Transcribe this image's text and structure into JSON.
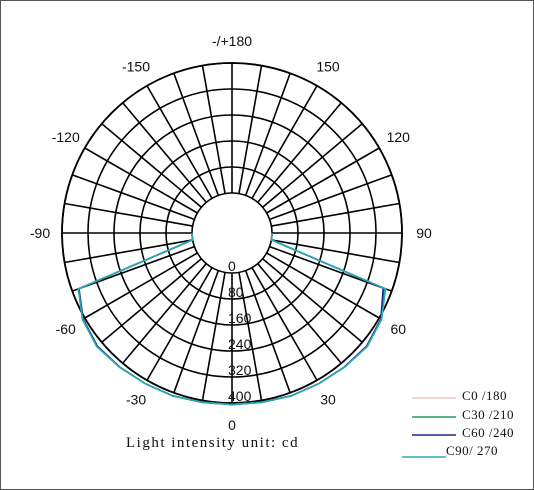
{
  "chart_data": {
    "type": "polar",
    "title": "",
    "unit_label": "Light intensity unit: cd",
    "angle_ticks": [
      {
        "angle": 180,
        "label": "-/+180"
      },
      {
        "angle": 150,
        "label": "150"
      },
      {
        "angle": 120,
        "label": "120"
      },
      {
        "angle": 90,
        "label": "90"
      },
      {
        "angle": 60,
        "label": "60"
      },
      {
        "angle": 30,
        "label": "30"
      },
      {
        "angle": 0,
        "label": "0"
      },
      {
        "angle": -30,
        "label": "-30"
      },
      {
        "angle": -60,
        "label": "-60"
      },
      {
        "angle": -90,
        "label": "-90"
      },
      {
        "angle": -120,
        "label": "-120"
      },
      {
        "angle": -150,
        "label": "-150"
      }
    ],
    "radial_ticks": [
      0,
      80,
      160,
      240,
      320,
      400
    ],
    "radial_max": 400,
    "angle_spoke_step_deg": 10,
    "angles": [
      -90,
      -80,
      -70,
      -60,
      -50,
      -40,
      -30,
      -20,
      -10,
      0,
      10,
      20,
      30,
      40,
      50,
      60,
      70,
      80,
      90
    ],
    "series": [
      {
        "name": "C0 /180",
        "color": "#f0c8b8",
        "values": [
          0,
          0,
          380,
          408,
          420,
          415,
          412,
          410,
          406,
          405,
          406,
          410,
          412,
          415,
          420,
          408,
          380,
          0,
          0
        ]
      },
      {
        "name": "C30 /210",
        "color": "#1e9e5a",
        "values": [
          0,
          0,
          380,
          408,
          420,
          415,
          412,
          410,
          406,
          405,
          406,
          410,
          412,
          415,
          420,
          408,
          375,
          0,
          0
        ]
      },
      {
        "name": "C60 /240",
        "color": "#1a2a8c",
        "values": [
          0,
          0,
          378,
          406,
          418,
          415,
          412,
          410,
          406,
          405,
          406,
          410,
          412,
          415,
          418,
          406,
          372,
          0,
          0
        ]
      },
      {
        "name": "C90/ 270",
        "color": "#2aa8b8",
        "values": [
          0,
          0,
          380,
          408,
          420,
          416,
          412,
          410,
          406,
          405,
          406,
          410,
          412,
          416,
          420,
          408,
          380,
          0,
          0
        ]
      }
    ]
  }
}
